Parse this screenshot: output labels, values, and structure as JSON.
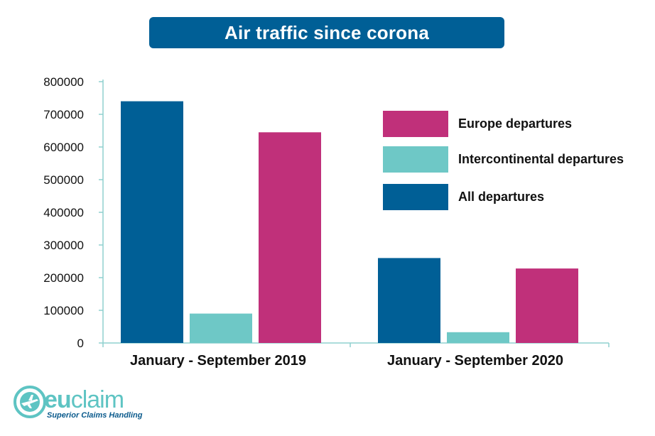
{
  "title": "Air traffic since corona",
  "colors": {
    "all": "#005f96",
    "intercontinental": "#6ec8c6",
    "europe": "#c0307a",
    "axis": "#8fd0cf",
    "banner": "#005f96"
  },
  "chart_data": {
    "type": "bar",
    "categories": [
      "January - September 2019",
      "January - September 2020"
    ],
    "series": [
      {
        "name": "All departures",
        "values": [
          740000,
          260000
        ],
        "color": "#005f96"
      },
      {
        "name": "Intercontinental departures",
        "values": [
          90000,
          33000
        ],
        "color": "#6ec8c6"
      },
      {
        "name": "Europe departures",
        "values": [
          645000,
          228000
        ],
        "color": "#c0307a"
      }
    ],
    "ylim": [
      0,
      800000
    ],
    "yticks": [
      0,
      100000,
      200000,
      300000,
      400000,
      500000,
      600000,
      700000,
      800000
    ],
    "legend": {
      "placement": "top-right",
      "order": [
        "Europe departures",
        "Intercontinental departures",
        "All departures"
      ]
    },
    "grid": false
  },
  "logo": {
    "name_part1": "eu",
    "name_part2": "claim",
    "tagline": "Superior Claims Handling",
    "plane_icon": "airplane-icon"
  }
}
